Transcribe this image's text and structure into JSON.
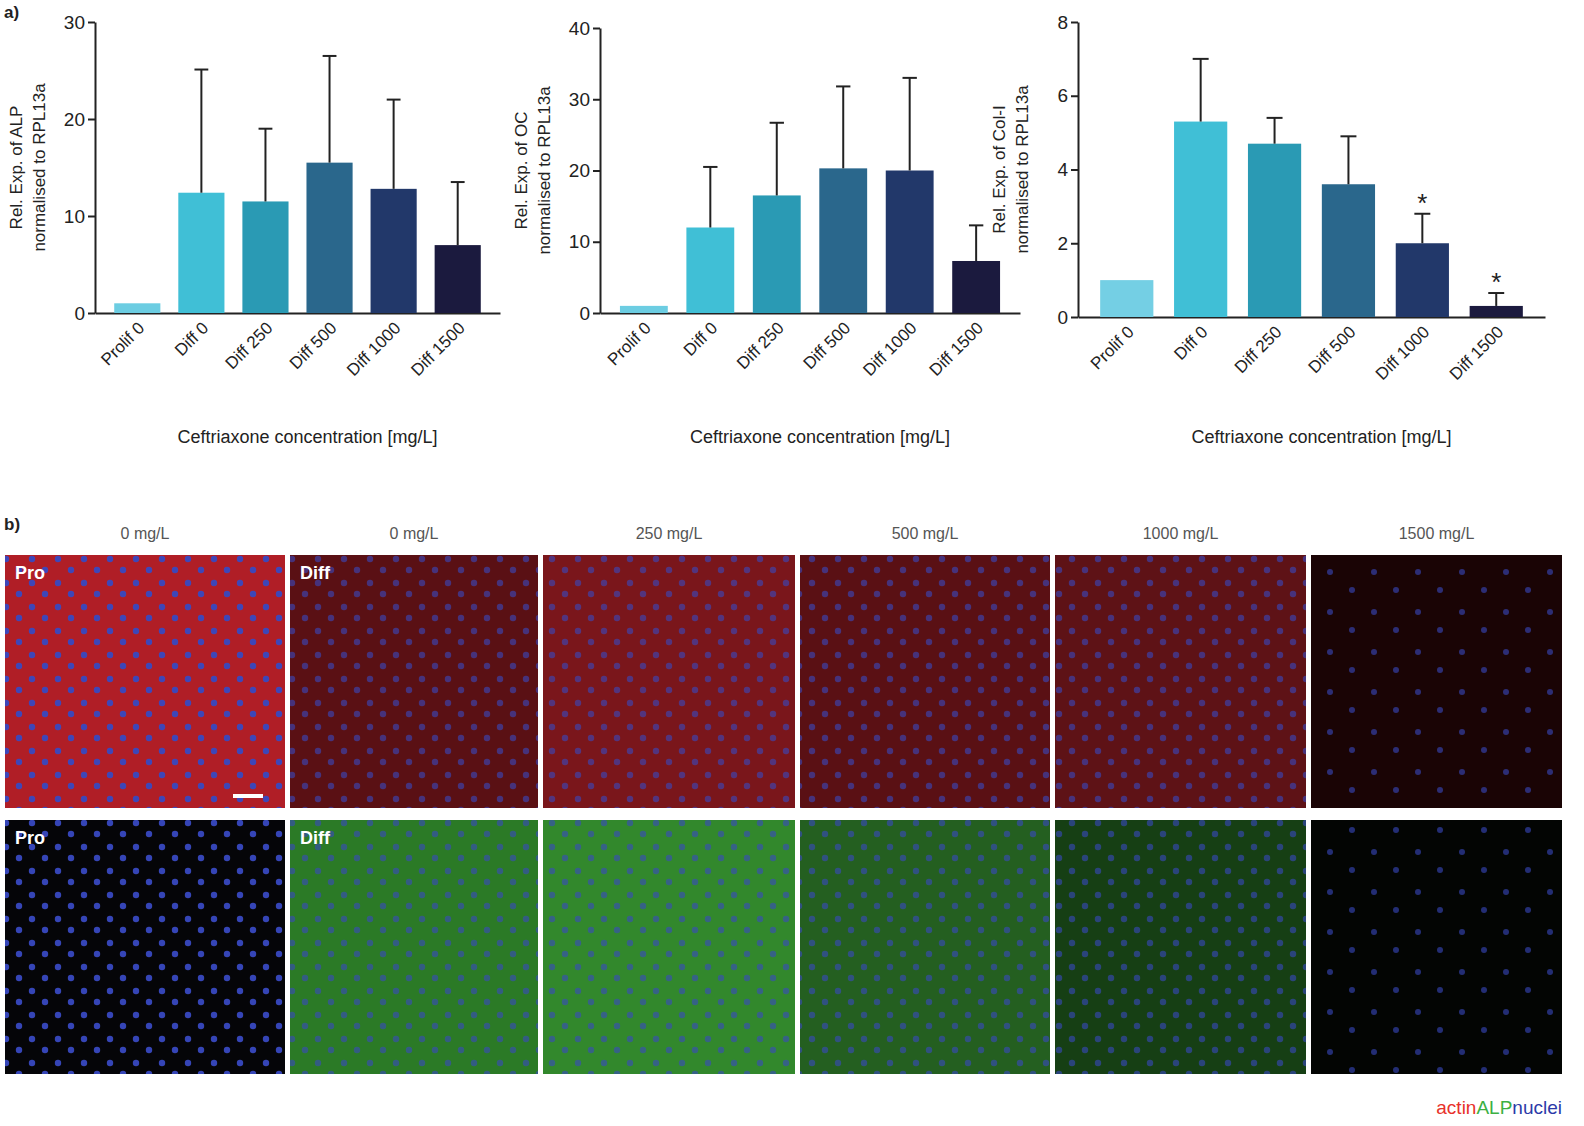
{
  "chart_data": [
    {
      "type": "bar",
      "y_label": [
        "Rel. Exp. of ALP",
        "normalised to RPL13a"
      ],
      "x_label": "Ceftriaxone concentration [mg/L]",
      "categories": [
        "Prolif 0",
        "Diff 0",
        "Diff 250",
        "Diff 500",
        "Diff 1000",
        "Diff 1500"
      ],
      "values": [
        1,
        12.4,
        11.5,
        15.5,
        12.8,
        7.0
      ],
      "errors": [
        null,
        12.7,
        7.5,
        11.0,
        9.2,
        6.5
      ],
      "colors": [
        "#6ccde2",
        "#40bfd6",
        "#2a9ab4",
        "#2a678c",
        "#22386a",
        "#1b1a3e"
      ],
      "ylim": [
        0,
        30
      ],
      "yticks": [
        0,
        10,
        20,
        30
      ]
    },
    {
      "type": "bar",
      "y_label": [
        "Rel. Exp. of OC",
        "normalised to RPL13a"
      ],
      "x_label": "Ceftriaxone concentration [mg/L]",
      "categories": [
        "Prolif 0",
        "Diff 0",
        "Diff 250",
        "Diff 500",
        "Diff 1000",
        "Diff 1500"
      ],
      "values": [
        1,
        12.0,
        16.5,
        20.3,
        20.0,
        7.3
      ],
      "errors": [
        null,
        8.5,
        10.2,
        11.5,
        13.0,
        5.0
      ],
      "colors": [
        "#6ccde2",
        "#40bfd6",
        "#2a9ab4",
        "#2a678c",
        "#22386a",
        "#1b1a3e"
      ],
      "ylim": [
        0,
        40
      ],
      "yticks": [
        0,
        10,
        20,
        30,
        40
      ]
    },
    {
      "type": "bar",
      "y_label": [
        "Rel. Exp. of Col-I",
        "normalised to RPL13a"
      ],
      "x_label": "Ceftriaxone concentration [mg/L]",
      "categories": [
        "Prolif 0",
        "Diff 0",
        "Diff 250",
        "Diff 500",
        "Diff 1000",
        "Diff 1500"
      ],
      "values": [
        1,
        5.3,
        4.7,
        3.6,
        2.0,
        0.3
      ],
      "errors": [
        null,
        1.7,
        0.7,
        1.3,
        0.8,
        0.35
      ],
      "annotations": [
        null,
        null,
        null,
        null,
        "*",
        "*"
      ],
      "colors": [
        "#74cfe4",
        "#40bfd6",
        "#2a9ab4",
        "#2a678c",
        "#22386a",
        "#1b1a3e"
      ],
      "ylim": [
        0,
        8
      ],
      "yticks": [
        0,
        2,
        4,
        6,
        8
      ]
    }
  ],
  "panel_a": {
    "label": "a)"
  },
  "panel_b": {
    "label": "b)",
    "columns": [
      "0 mg/L",
      "0 mg/L",
      "250 mg/L",
      "500 mg/L",
      "1000 mg/L",
      "1500 mg/L"
    ],
    "rows": [
      [
        "Pro",
        "Diff",
        null,
        null,
        null,
        null
      ],
      [
        "Pro",
        "Diff",
        null,
        null,
        null,
        null
      ]
    ],
    "legend": [
      {
        "name": "actin",
        "color": "#e8312a"
      },
      {
        "name": "ALP",
        "color": "#3cb043"
      },
      {
        "name": "nuclei",
        "color": "#2b3aa8"
      }
    ]
  }
}
